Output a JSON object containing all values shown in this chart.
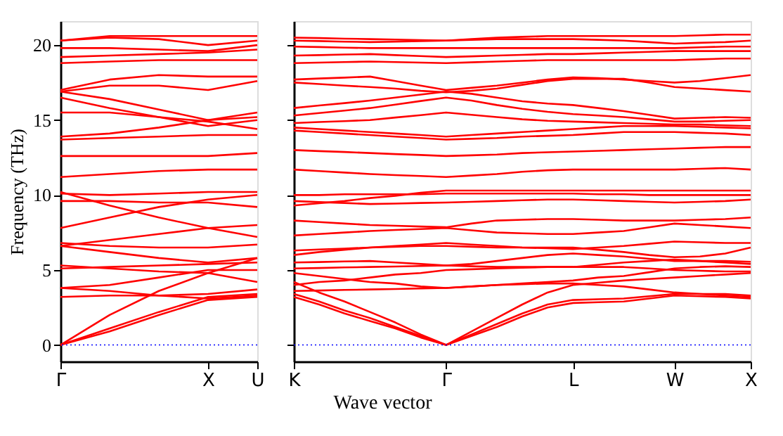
{
  "chart_data": [
    {
      "type": "line",
      "ylabel": "Frequency (THz)",
      "categories": [
        "Γ",
        null,
        null,
        "X",
        "U"
      ],
      "ylim": [
        -1.1,
        21.6
      ],
      "yticks": [
        0,
        5,
        10,
        15,
        20
      ],
      "grid": false,
      "legend": false,
      "marker": "none",
      "line_style": "solid",
      "ref_lines": [
        {
          "axis": "y",
          "value": 0,
          "label": null,
          "color": "#0000ff",
          "line_style": "dotted"
        }
      ],
      "series": [
        {
          "color": "#ff0000",
          "values": [
            0,
            0.9,
            2.0,
            3.0,
            3.2
          ]
        },
        {
          "color": "#ff0000",
          "values": [
            0,
            1.1,
            2.2,
            3.2,
            3.4
          ]
        },
        {
          "color": "#ff0000",
          "values": [
            0,
            2.0,
            3.6,
            4.8,
            4.2
          ]
        },
        {
          "color": "#ff0000",
          "values": [
            3.2,
            3.3,
            3.3,
            3.4,
            3.7
          ]
        },
        {
          "color": "#ff0000",
          "values": [
            3.8,
            4.0,
            4.5,
            5.0,
            5.0
          ]
        },
        {
          "color": "#ff0000",
          "values": [
            3.8,
            3.6,
            3.3,
            3.1,
            3.3
          ]
        },
        {
          "color": "#ff0000",
          "values": [
            5.1,
            5.2,
            5.3,
            5.4,
            5.5
          ]
        },
        {
          "color": "#ff0000",
          "values": [
            5.3,
            5.1,
            4.9,
            4.8,
            5.8
          ]
        },
        {
          "color": "#ff0000",
          "values": [
            6.6,
            6.2,
            5.8,
            5.5,
            5.8
          ]
        },
        {
          "color": "#ff0000",
          "values": [
            6.8,
            6.6,
            6.5,
            6.5,
            6.7
          ]
        },
        {
          "color": "#ff0000",
          "values": [
            6.6,
            7.0,
            7.4,
            7.8,
            8.0
          ]
        },
        {
          "color": "#ff0000",
          "values": [
            7.8,
            8.5,
            9.2,
            9.7,
            10.0
          ]
        },
        {
          "color": "#ff0000",
          "values": [
            10.2,
            9.3,
            8.5,
            7.8,
            7.2
          ]
        },
        {
          "color": "#ff0000",
          "values": [
            9.6,
            9.6,
            9.5,
            9.5,
            9.2
          ]
        },
        {
          "color": "#ff0000",
          "values": [
            10.1,
            10.0,
            10.1,
            10.2,
            10.2
          ]
        },
        {
          "color": "#ff0000",
          "values": [
            11.2,
            11.4,
            11.6,
            11.7,
            11.7
          ]
        },
        {
          "color": "#ff0000",
          "values": [
            12.6,
            12.6,
            12.6,
            12.6,
            12.8
          ]
        },
        {
          "color": "#ff0000",
          "values": [
            13.7,
            13.8,
            13.9,
            14.0,
            14.0
          ]
        },
        {
          "color": "#ff0000",
          "values": [
            13.9,
            14.1,
            14.5,
            15.0,
            15.2
          ]
        },
        {
          "color": "#ff0000",
          "values": [
            15.5,
            15.5,
            15.2,
            14.9,
            14.4
          ]
        },
        {
          "color": "#ff0000",
          "values": [
            16.5,
            15.8,
            15.2,
            14.6,
            15.0
          ]
        },
        {
          "color": "#ff0000",
          "values": [
            16.9,
            16.4,
            15.7,
            15.0,
            15.5
          ]
        },
        {
          "color": "#ff0000",
          "values": [
            16.9,
            17.3,
            17.3,
            17.0,
            17.6
          ]
        },
        {
          "color": "#ff0000",
          "values": [
            17.0,
            17.7,
            18.0,
            17.9,
            17.9
          ]
        },
        {
          "color": "#ff0000",
          "values": [
            18.8,
            18.9,
            19.0,
            19.0,
            19.0
          ]
        },
        {
          "color": "#ff0000",
          "values": [
            19.2,
            19.3,
            19.4,
            19.5,
            19.7
          ]
        },
        {
          "color": "#ff0000",
          "values": [
            19.8,
            19.8,
            19.7,
            19.6,
            20.0
          ]
        },
        {
          "color": "#ff0000",
          "values": [
            20.3,
            20.5,
            20.4,
            20.0,
            20.3
          ]
        },
        {
          "color": "#ff0000",
          "values": [
            20.3,
            20.6,
            20.6,
            20.6,
            20.6
          ]
        }
      ]
    },
    {
      "type": "line",
      "xlabel": "Wave vector",
      "tick_labels": "x",
      "categories": [
        "K",
        null,
        null,
        null,
        null,
        null,
        "Γ",
        null,
        null,
        null,
        null,
        "L",
        null,
        null,
        null,
        "W",
        null,
        null,
        "X"
      ],
      "ylim": [
        -1.1,
        21.6
      ],
      "yticks": [
        0,
        5,
        10,
        15,
        20
      ],
      "grid": false,
      "legend": false,
      "marker": "none",
      "line_style": "solid",
      "ref_lines": [
        {
          "axis": "y",
          "value": 0,
          "label": null,
          "color": "#0000ff",
          "line_style": "dotted"
        }
      ],
      "series": [
        {
          "color": "#ff0000",
          "values": [
            3.2,
            2.7,
            2.1,
            1.6,
            1.1,
            0.5,
            0,
            0.6,
            1.2,
            1.9,
            2.5,
            2.8,
            2.85,
            2.9,
            3.1,
            3.3,
            3.25,
            3.2,
            3.1
          ]
        },
        {
          "color": "#ff0000",
          "values": [
            3.4,
            2.9,
            2.3,
            1.8,
            1.2,
            0.6,
            0,
            0.7,
            1.4,
            2.1,
            2.7,
            3.0,
            3.05,
            3.1,
            3.25,
            3.4,
            3.4,
            3.4,
            3.3
          ]
        },
        {
          "color": "#ff0000",
          "values": [
            4.2,
            3.5,
            2.9,
            2.2,
            1.5,
            0.7,
            0,
            0.9,
            1.8,
            2.7,
            3.5,
            4.0,
            4.15,
            4.3,
            4.4,
            4.5,
            4.6,
            4.7,
            4.8
          ]
        },
        {
          "color": "#ff0000",
          "values": [
            3.6,
            3.63,
            3.67,
            3.7,
            3.73,
            3.77,
            3.8,
            3.9,
            4.0,
            4.05,
            4.1,
            4.1,
            4.0,
            3.9,
            3.7,
            3.5,
            3.4,
            3.3,
            3.2
          ]
        },
        {
          "color": "#ff0000",
          "values": [
            4.0,
            4.2,
            4.3,
            4.5,
            4.7,
            4.8,
            5.0,
            5.05,
            5.1,
            5.15,
            5.2,
            5.2,
            5.2,
            5.2,
            5.1,
            5.0,
            4.95,
            4.9,
            4.9
          ]
        },
        {
          "color": "#ff0000",
          "values": [
            4.8,
            4.6,
            4.4,
            4.2,
            4.1,
            3.9,
            3.8,
            3.9,
            4.0,
            4.1,
            4.2,
            4.3,
            4.5,
            4.6,
            4.85,
            5.1,
            5.2,
            5.25,
            5.2
          ]
        },
        {
          "color": "#ff0000",
          "values": [
            5.1,
            5.13,
            5.17,
            5.2,
            5.23,
            5.27,
            5.3,
            5.25,
            5.2,
            5.2,
            5.2,
            5.2,
            5.35,
            5.5,
            5.6,
            5.7,
            5.6,
            5.5,
            5.4
          ]
        },
        {
          "color": "#ff0000",
          "values": [
            5.5,
            5.53,
            5.57,
            5.6,
            5.5,
            5.4,
            5.3,
            5.4,
            5.6,
            5.8,
            6.0,
            6.1,
            6.0,
            5.9,
            5.75,
            5.6,
            5.6,
            5.6,
            5.55
          ]
        },
        {
          "color": "#ff0000",
          "values": [
            6.0,
            6.2,
            6.35,
            6.5,
            6.55,
            6.6,
            6.6,
            6.55,
            6.5,
            6.5,
            6.5,
            6.5,
            6.35,
            6.2,
            6.0,
            5.85,
            5.9,
            6.1,
            6.5
          ]
        },
        {
          "color": "#ff0000",
          "values": [
            6.3,
            6.37,
            6.43,
            6.5,
            6.6,
            6.7,
            6.8,
            6.7,
            6.6,
            6.5,
            6.45,
            6.4,
            6.5,
            6.6,
            6.75,
            6.9,
            6.85,
            6.8,
            6.8
          ]
        },
        {
          "color": "#ff0000",
          "values": [
            7.3,
            7.4,
            7.5,
            7.6,
            7.67,
            7.73,
            7.8,
            7.65,
            7.5,
            7.45,
            7.4,
            7.4,
            7.5,
            7.6,
            7.85,
            8.1,
            8.0,
            7.9,
            7.8
          ]
        },
        {
          "color": "#ff0000",
          "values": [
            8.3,
            8.2,
            8.1,
            8.0,
            7.95,
            7.9,
            7.85,
            8.1,
            8.3,
            8.35,
            8.4,
            8.4,
            8.35,
            8.3,
            8.3,
            8.3,
            8.35,
            8.4,
            8.5
          ]
        },
        {
          "color": "#ff0000",
          "values": [
            9.6,
            9.53,
            9.47,
            9.4,
            9.43,
            9.47,
            9.5,
            9.55,
            9.6,
            9.65,
            9.7,
            9.7,
            9.65,
            9.6,
            9.55,
            9.5,
            9.55,
            9.6,
            9.7
          ]
        },
        {
          "color": "#ff0000",
          "values": [
            10.0,
            10.0,
            10.05,
            10.05,
            10.05,
            10.05,
            10.1,
            10.1,
            10.1,
            10.1,
            10.1,
            10.1,
            10.05,
            10.05,
            10.0,
            10.0,
            10.0,
            10.0,
            10.0
          ]
        },
        {
          "color": "#ff0000",
          "values": [
            9.3,
            9.45,
            9.6,
            9.8,
            9.95,
            10.15,
            10.3,
            10.3,
            10.3,
            10.3,
            10.3,
            10.3,
            10.3,
            10.3,
            10.3,
            10.3,
            10.3,
            10.3,
            10.3
          ]
        },
        {
          "color": "#ff0000",
          "values": [
            11.7,
            11.6,
            11.5,
            11.4,
            11.33,
            11.27,
            11.2,
            11.3,
            11.4,
            11.55,
            11.65,
            11.7,
            11.7,
            11.7,
            11.7,
            11.7,
            11.75,
            11.8,
            11.7
          ]
        },
        {
          "color": "#ff0000",
          "values": [
            13.0,
            12.93,
            12.87,
            12.8,
            12.73,
            12.67,
            12.6,
            12.65,
            12.7,
            12.8,
            12.85,
            12.9,
            12.95,
            13.0,
            13.05,
            13.1,
            13.15,
            13.2,
            13.2
          ]
        },
        {
          "color": "#ff0000",
          "values": [
            14.3,
            14.2,
            14.1,
            14.0,
            13.9,
            13.8,
            13.7,
            13.75,
            13.8,
            13.9,
            13.95,
            14.0,
            14.1,
            14.2,
            14.2,
            14.2,
            14.15,
            14.1,
            14.0
          ]
        },
        {
          "color": "#ff0000",
          "values": [
            14.5,
            14.4,
            14.3,
            14.2,
            14.1,
            14.0,
            13.9,
            14.0,
            14.1,
            14.2,
            14.3,
            14.4,
            14.5,
            14.6,
            14.6,
            14.6,
            14.55,
            14.5,
            14.45
          ]
        },
        {
          "color": "#ff0000",
          "values": [
            14.8,
            14.87,
            14.93,
            15.0,
            15.17,
            15.33,
            15.5,
            15.35,
            15.2,
            15.05,
            14.95,
            14.9,
            14.85,
            14.8,
            14.75,
            14.7,
            14.7,
            14.65,
            14.6
          ]
        },
        {
          "color": "#ff0000",
          "values": [
            15.3,
            15.47,
            15.63,
            15.8,
            16.03,
            16.27,
            16.5,
            16.3,
            16.0,
            15.75,
            15.55,
            15.4,
            15.3,
            15.2,
            15.05,
            14.9,
            14.9,
            14.95,
            15.0
          ]
        },
        {
          "color": "#ff0000",
          "values": [
            15.8,
            15.97,
            16.13,
            16.3,
            16.5,
            16.7,
            16.9,
            16.75,
            16.5,
            16.25,
            16.1,
            16.0,
            15.8,
            15.6,
            15.35,
            15.1,
            15.15,
            15.2,
            15.15
          ]
        },
        {
          "color": "#ff0000",
          "values": [
            17.5,
            17.4,
            17.3,
            17.2,
            17.1,
            16.95,
            16.85,
            16.95,
            17.1,
            17.35,
            17.6,
            17.75,
            17.75,
            17.75,
            17.5,
            17.2,
            17.1,
            17.0,
            16.9
          ]
        },
        {
          "color": "#ff0000",
          "values": [
            17.7,
            17.77,
            17.83,
            17.9,
            17.6,
            17.3,
            17.0,
            17.15,
            17.3,
            17.5,
            17.7,
            17.85,
            17.8,
            17.7,
            17.6,
            17.5,
            17.6,
            17.8,
            18.0
          ]
        },
        {
          "color": "#ff0000",
          "values": [
            18.8,
            18.83,
            18.87,
            18.9,
            18.87,
            18.83,
            18.8,
            18.85,
            18.9,
            18.95,
            19.0,
            19.0,
            19.0,
            19.0,
            19.0,
            19.0,
            19.05,
            19.1,
            19.1
          ]
        },
        {
          "color": "#ff0000",
          "values": [
            19.3,
            19.33,
            19.37,
            19.4,
            19.33,
            19.27,
            19.2,
            19.25,
            19.3,
            19.35,
            19.4,
            19.4,
            19.45,
            19.5,
            19.55,
            19.6,
            19.6,
            19.6,
            19.6
          ]
        },
        {
          "color": "#ff0000",
          "values": [
            19.9,
            19.87,
            19.83,
            19.8,
            19.8,
            19.8,
            19.8,
            19.8,
            19.8,
            19.8,
            19.8,
            19.8,
            19.8,
            19.8,
            19.8,
            19.8,
            19.85,
            19.9,
            19.9
          ]
        },
        {
          "color": "#ff0000",
          "values": [
            20.3,
            20.27,
            20.23,
            20.2,
            20.23,
            20.27,
            20.3,
            20.35,
            20.4,
            20.4,
            20.4,
            20.4,
            20.35,
            20.3,
            20.2,
            20.1,
            20.15,
            20.2,
            20.3
          ]
        },
        {
          "color": "#ff0000",
          "values": [
            20.5,
            20.47,
            20.43,
            20.4,
            20.37,
            20.33,
            20.3,
            20.4,
            20.5,
            20.55,
            20.6,
            20.6,
            20.6,
            20.6,
            20.6,
            20.6,
            20.65,
            20.7,
            20.7
          ]
        }
      ]
    }
  ]
}
